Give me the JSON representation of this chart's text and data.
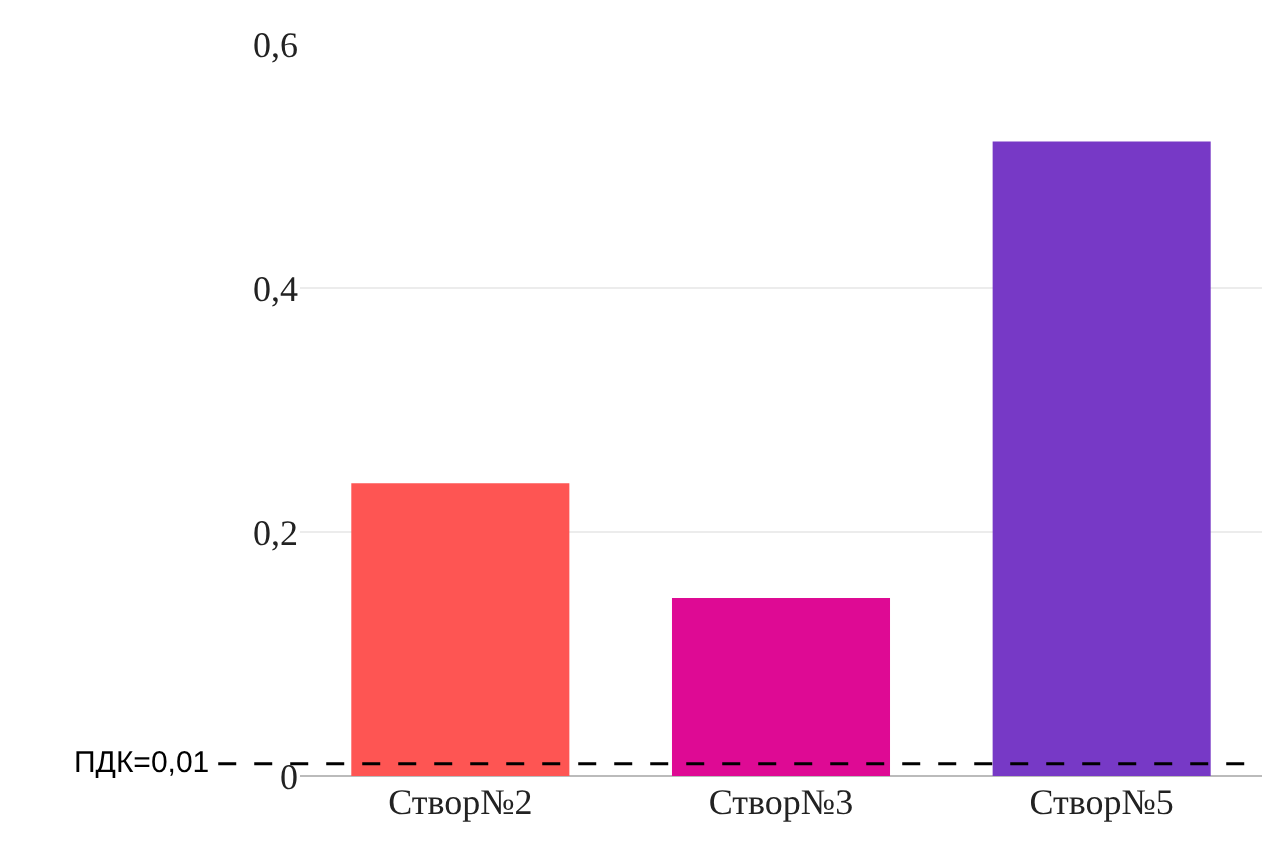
{
  "chart_data": {
    "type": "bar",
    "categories": [
      "Створ№2",
      "Створ№3",
      "Створ№5"
    ],
    "values": [
      0.24,
      0.146,
      0.52
    ],
    "colors": [
      "#fe5553",
      "#de0a94",
      "#7739c6"
    ],
    "ylim": [
      0,
      0.6
    ],
    "yticks": [
      0,
      {
        "value": 0.2,
        "label": "0,2"
      },
      {
        "value": 0.4,
        "label": "0,4"
      },
      {
        "value": 0.6,
        "label": "0,6"
      }
    ],
    "grid": "y",
    "ref_lines": [
      {
        "axis": "y",
        "value": 0.01,
        "label": "ПДК=0,01",
        "color": "#000000",
        "line_style": "dashed"
      }
    ]
  }
}
